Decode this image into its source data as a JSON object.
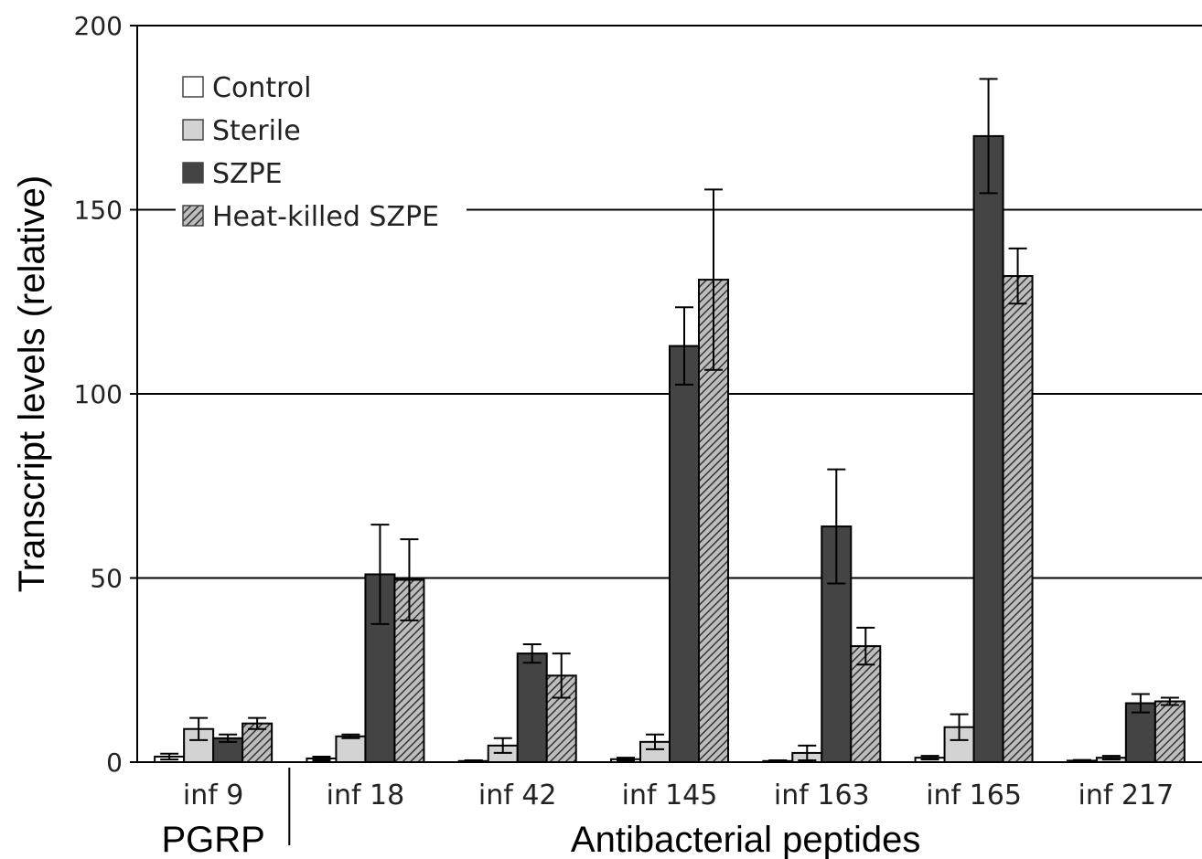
{
  "chart_data": {
    "type": "bar",
    "ylabel": "Transcript levels (relative)",
    "ylim": [
      0,
      200
    ],
    "yticks": [
      "0",
      "50",
      "100",
      "150",
      "200"
    ],
    "grid": true,
    "legend_position": "top-left",
    "categories": [
      "inf 9",
      "inf 18",
      "inf 42",
      "inf 145",
      "inf 163",
      "inf 165",
      "inf 217"
    ],
    "groups": [
      {
        "label": "PGRP",
        "categories": [
          "inf 9"
        ]
      },
      {
        "label": "Antibacterial peptides",
        "categories": [
          "inf 18",
          "inf 42",
          "inf 145",
          "inf 163",
          "inf 165",
          "inf 217"
        ]
      }
    ],
    "series": [
      {
        "name": "Control",
        "fill": "#ffffff",
        "pattern": "none",
        "values": [
          1.5,
          1.0,
          0.3,
          0.8,
          0.3,
          1.2,
          0.4
        ],
        "errors": [
          0.8,
          0.5,
          0.2,
          0.4,
          0.2,
          0.5,
          0.2
        ]
      },
      {
        "name": "Sterile",
        "fill": "#d3d3d3",
        "pattern": "none",
        "values": [
          9,
          7,
          4.5,
          5.5,
          2.5,
          9.5,
          1.2
        ],
        "errors": [
          3,
          0.5,
          2,
          2,
          2,
          3.5,
          0.5
        ]
      },
      {
        "name": "SZPE",
        "fill": "#444444",
        "pattern": "none",
        "values": [
          6.5,
          51,
          29.5,
          113,
          64,
          170,
          16
        ],
        "errors": [
          1,
          13.5,
          2.5,
          10.5,
          15.5,
          15.5,
          2.5
        ]
      },
      {
        "name": "Heat-killed SZPE",
        "fill": "#8a8a8a",
        "pattern": "diagonal-hatch",
        "values": [
          10.5,
          49.5,
          23.5,
          131,
          31.5,
          132,
          16.5
        ],
        "errors": [
          1.5,
          11,
          6,
          24.5,
          5,
          7.5,
          1
        ]
      }
    ]
  }
}
